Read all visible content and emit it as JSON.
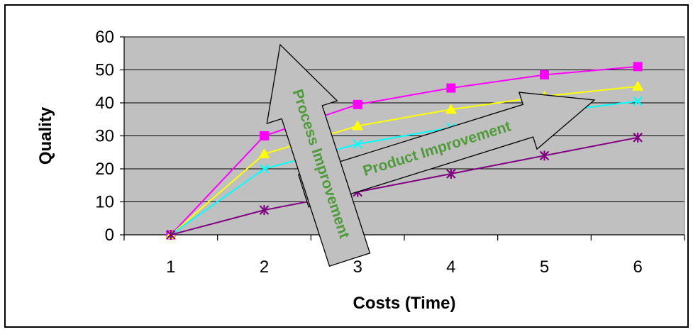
{
  "chart_data": {
    "type": "line",
    "title": "",
    "xlabel": "Costs (Time)",
    "ylabel": "Quality",
    "categories": [
      "1",
      "2",
      "3",
      "4",
      "5",
      "6"
    ],
    "ylim": [
      0,
      60
    ],
    "yticks": [
      0,
      10,
      20,
      30,
      40,
      50,
      60
    ],
    "grid": true,
    "legend": "none",
    "plot_background": "#c0c0c0",
    "series": [
      {
        "color": "#ff00ff",
        "marker": "square",
        "values": [
          0,
          30,
          39.5,
          44.5,
          48.5,
          51
        ]
      },
      {
        "color": "#ffff00",
        "marker": "triangle",
        "values": [
          0,
          24.5,
          33,
          38,
          42,
          45
        ]
      },
      {
        "color": "#00ffff",
        "marker": "x",
        "values": [
          0,
          20,
          27.5,
          32.5,
          37,
          40.5
        ]
      },
      {
        "color": "#800080",
        "marker": "star",
        "values": [
          0,
          7.5,
          13,
          18.5,
          24,
          29.5
        ]
      }
    ],
    "annotations": [
      {
        "id": "process",
        "text": "Process Improvement",
        "color": "#4f9a3a"
      },
      {
        "id": "product",
        "text": "Product Improvement",
        "color": "#4f9a3a"
      }
    ]
  }
}
